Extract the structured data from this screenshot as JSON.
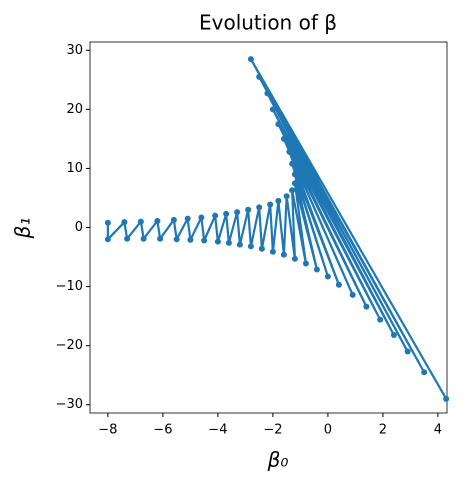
{
  "chart_data": {
    "type": "line",
    "title": "Evolution of β",
    "x_label": "β₀",
    "y_label": "β₁",
    "xlim": [
      -8.65,
      4.33
    ],
    "ylim": [
      -31.4,
      31.4
    ],
    "xticks": [
      {
        "value": -8,
        "label": "−8"
      },
      {
        "value": -6,
        "label": "−6"
      },
      {
        "value": -4,
        "label": "−4"
      },
      {
        "value": -2,
        "label": "−2"
      },
      0,
      2,
      4
    ],
    "yticks": [
      {
        "value": -30,
        "label": "−30"
      },
      {
        "value": -20,
        "label": "−20"
      },
      {
        "value": -10,
        "label": "−10"
      },
      0,
      10,
      20,
      30
    ],
    "series": [
      {
        "color": "#1f77b4",
        "marker": true,
        "x": [
          -8.0,
          -8.0,
          -7.4,
          -7.3,
          -6.8,
          -6.7,
          -6.2,
          -6.1,
          -5.6,
          -5.5,
          -5.1,
          -5.0,
          -4.6,
          -4.5,
          -4.1,
          -4.0,
          -3.7,
          -3.6,
          -3.3,
          -3.2,
          -2.9,
          -2.8,
          -2.5,
          -2.4,
          -2.1,
          -2.0,
          -1.8,
          -1.6,
          -1.5,
          -1.2,
          -1.3,
          -0.8,
          -1.2,
          -0.4,
          -1.2,
          0.0,
          -1.3,
          0.4,
          -1.4,
          0.9,
          -1.6,
          1.4,
          -1.8,
          1.9,
          -2.0,
          2.4,
          -2.2,
          2.9,
          -2.5,
          3.5,
          -2.8,
          4.3
        ],
        "values": [
          0.8,
          -2.0,
          0.9,
          -1.9,
          1.0,
          -1.9,
          1.1,
          -1.9,
          1.3,
          -2.0,
          1.5,
          -2.1,
          1.7,
          -2.2,
          2.0,
          -2.4,
          2.3,
          -2.6,
          2.6,
          -2.9,
          3.0,
          -3.2,
          3.4,
          -3.6,
          3.9,
          -4.1,
          4.5,
          -4.6,
          5.3,
          -5.3,
          6.3,
          -6.1,
          7.5,
          -7.1,
          9.0,
          -8.3,
          10.8,
          -9.7,
          12.8,
          -11.4,
          15.0,
          -13.4,
          17.5,
          -15.6,
          20.0,
          -18.2,
          22.7,
          -21.0,
          25.5,
          -24.5,
          28.5,
          -29.0
        ]
      }
    ]
  }
}
